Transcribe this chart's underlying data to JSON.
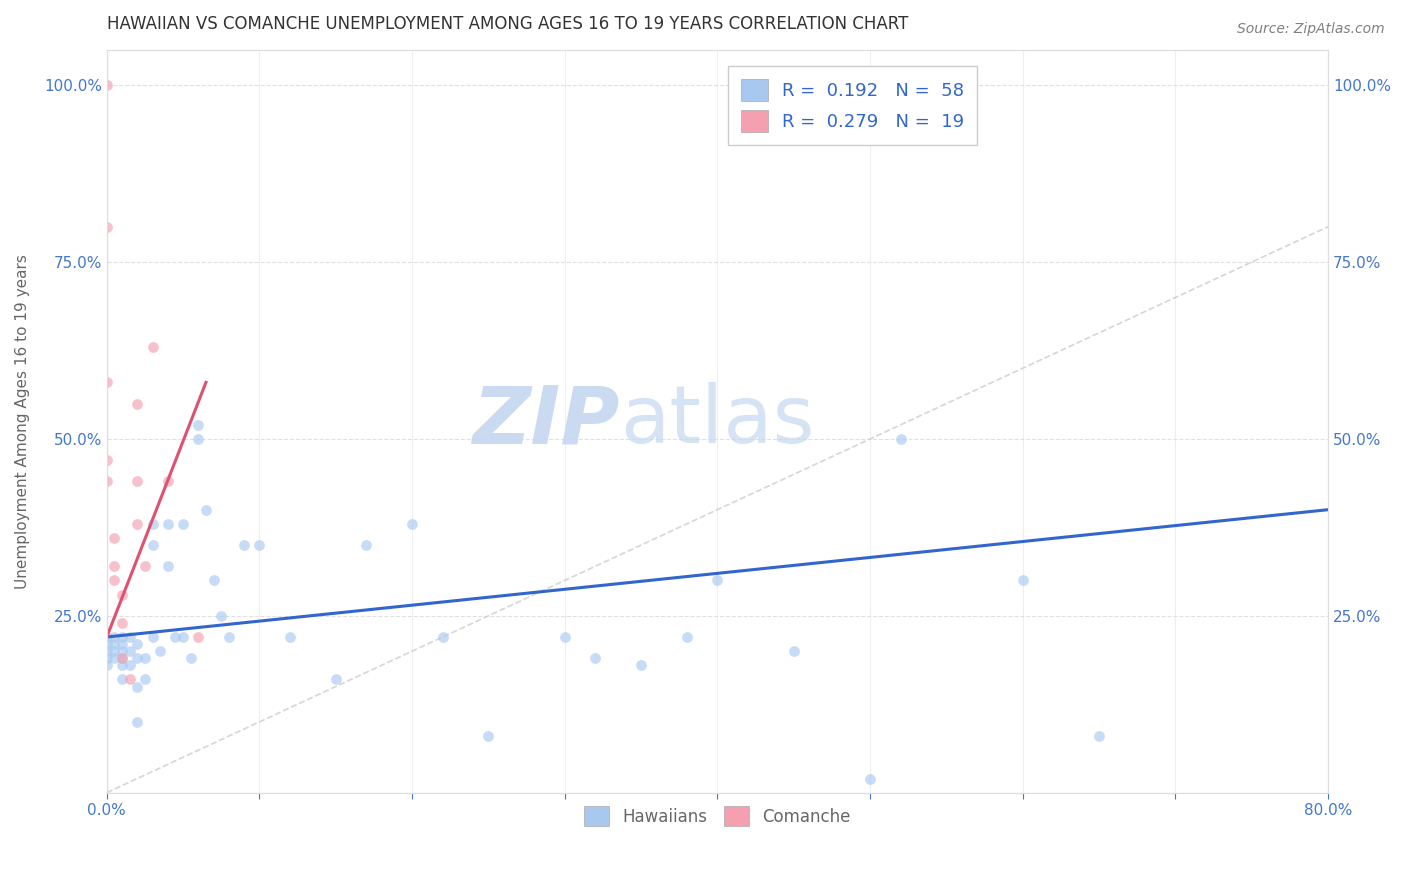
{
  "title": "HAWAIIAN VS COMANCHE UNEMPLOYMENT AMONG AGES 16 TO 19 YEARS CORRELATION CHART",
  "source": "Source: ZipAtlas.com",
  "ylabel": "Unemployment Among Ages 16 to 19 years",
  "xlim": [
    0.0,
    0.8
  ],
  "ylim": [
    0.0,
    1.05
  ],
  "hawaiians_x": [
    0.0,
    0.0,
    0.0,
    0.0,
    0.0,
    0.005,
    0.005,
    0.005,
    0.005,
    0.01,
    0.01,
    0.01,
    0.01,
    0.01,
    0.01,
    0.015,
    0.015,
    0.015,
    0.02,
    0.02,
    0.02,
    0.02,
    0.025,
    0.025,
    0.03,
    0.03,
    0.03,
    0.035,
    0.04,
    0.04,
    0.045,
    0.05,
    0.05,
    0.055,
    0.06,
    0.06,
    0.065,
    0.07,
    0.075,
    0.08,
    0.09,
    0.1,
    0.12,
    0.15,
    0.17,
    0.2,
    0.22,
    0.25,
    0.3,
    0.32,
    0.35,
    0.38,
    0.4,
    0.45,
    0.5,
    0.52,
    0.6,
    0.65
  ],
  "hawaiians_y": [
    0.2,
    0.21,
    0.22,
    0.19,
    0.18,
    0.21,
    0.2,
    0.19,
    0.22,
    0.22,
    0.21,
    0.2,
    0.19,
    0.18,
    0.16,
    0.2,
    0.22,
    0.18,
    0.19,
    0.21,
    0.15,
    0.1,
    0.19,
    0.16,
    0.38,
    0.35,
    0.22,
    0.2,
    0.38,
    0.32,
    0.22,
    0.38,
    0.22,
    0.19,
    0.52,
    0.5,
    0.4,
    0.3,
    0.25,
    0.22,
    0.35,
    0.35,
    0.22,
    0.16,
    0.35,
    0.38,
    0.22,
    0.08,
    0.22,
    0.19,
    0.18,
    0.22,
    0.3,
    0.2,
    0.02,
    0.5,
    0.3,
    0.08
  ],
  "comanche_x": [
    0.0,
    0.0,
    0.0,
    0.0,
    0.0,
    0.005,
    0.005,
    0.005,
    0.01,
    0.01,
    0.01,
    0.015,
    0.02,
    0.02,
    0.02,
    0.025,
    0.03,
    0.04,
    0.06
  ],
  "comanche_y": [
    1.0,
    0.8,
    0.58,
    0.47,
    0.44,
    0.36,
    0.32,
    0.3,
    0.28,
    0.24,
    0.19,
    0.16,
    0.55,
    0.44,
    0.38,
    0.32,
    0.63,
    0.44,
    0.22
  ],
  "hawaiians_color": "#a8c8f0",
  "comanche_color": "#f4a0b0",
  "hawaiians_trend_color": "#3366cc",
  "comanche_trend_color": "#e05070",
  "diagonal_color": "#cccccc",
  "watermark_color": "#d8e8f8",
  "legend_R_hawaiians": "0.192",
  "legend_N_hawaiians": "58",
  "legend_R_comanche": "0.279",
  "legend_N_comanche": "19",
  "marker_size": 60,
  "marker_alpha": 0.65,
  "trend_linewidth": 2.2,
  "background_color": "#ffffff",
  "grid_color": "#e0e0e0",
  "title_color": "#333333",
  "axis_color": "#4477cc",
  "label_color": "#666666",
  "hawaiians_trend_x": [
    0.0,
    0.8
  ],
  "hawaiians_trend_y": [
    0.22,
    0.4
  ],
  "comanche_trend_x": [
    0.0,
    0.065
  ],
  "comanche_trend_y": [
    0.22,
    0.58
  ]
}
